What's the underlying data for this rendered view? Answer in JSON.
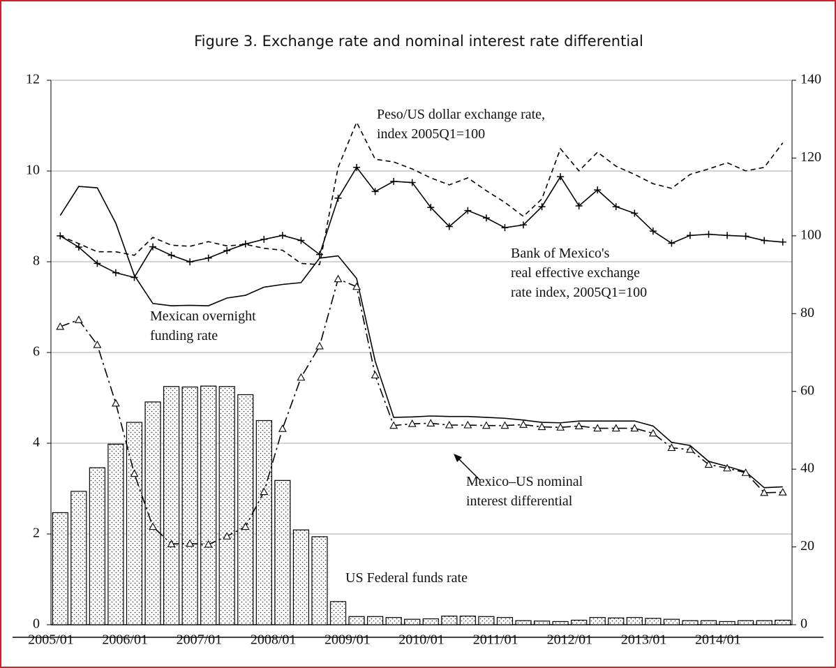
{
  "chart_data": {
    "type": "combo",
    "title": "Figure 3. Exchange rate and nominal interest rate differential",
    "categories": [
      "2005/01",
      null,
      null,
      null,
      "2006/01",
      null,
      null,
      null,
      "2007/01",
      null,
      null,
      null,
      "2008/01",
      null,
      null,
      null,
      "2009/01",
      null,
      null,
      null,
      "2010/01",
      null,
      null,
      null,
      "2011/01",
      null,
      null,
      null,
      "2012/01",
      null,
      null,
      null,
      "2013/01",
      null,
      null,
      null,
      "2014/01",
      null,
      null,
      null
    ],
    "ylim": [
      0,
      12
    ],
    "yticks": [
      0,
      2,
      4,
      6,
      8,
      10,
      12
    ],
    "y2lim": [
      0,
      140
    ],
    "y2ticks": [
      0,
      20,
      40,
      60,
      80,
      100,
      120,
      140
    ],
    "grid": true,
    "series": [
      {
        "name": "US Federal funds rate",
        "kind": "bar",
        "color": "#000000",
        "values": [
          2.47,
          2.94,
          3.46,
          3.98,
          4.46,
          4.91,
          5.25,
          5.24,
          5.26,
          5.25,
          5.07,
          4.5,
          3.18,
          2.09,
          1.94,
          0.51,
          0.18,
          0.18,
          0.16,
          0.12,
          0.13,
          0.19,
          0.19,
          0.18,
          0.16,
          0.09,
          0.08,
          0.07,
          0.1,
          0.16,
          0.15,
          0.16,
          0.14,
          0.12,
          0.09,
          0.09,
          0.07,
          0.09,
          0.09,
          0.1
        ]
      },
      {
        "name": "Mexican overnight\nfunding rate",
        "kind": "line",
        "dash": "solid",
        "color": "#000000",
        "values": [
          9.02,
          9.66,
          9.63,
          8.85,
          7.7,
          7.08,
          7.03,
          7.04,
          7.03,
          7.2,
          7.26,
          7.44,
          7.5,
          7.54,
          8.08,
          8.13,
          7.63,
          5.81,
          4.57,
          4.58,
          4.6,
          4.59,
          4.59,
          4.57,
          4.55,
          4.51,
          4.46,
          4.45,
          4.49,
          4.49,
          4.49,
          4.49,
          4.38,
          4.02,
          3.95,
          3.6,
          3.49,
          3.37,
          3.02,
          3.04
        ]
      },
      {
        "name": "Mexico–US nominal\ninterest differential",
        "kind": "line",
        "dash": "dashdot",
        "marker": "triangle",
        "color": "#000000",
        "values": [
          6.57,
          6.72,
          6.17,
          4.88,
          3.33,
          2.16,
          1.78,
          1.79,
          1.77,
          1.95,
          2.16,
          2.93,
          4.32,
          5.45,
          6.14,
          7.62,
          7.45,
          5.5,
          4.39,
          4.43,
          4.44,
          4.4,
          4.4,
          4.39,
          4.39,
          4.41,
          4.36,
          4.35,
          4.38,
          4.33,
          4.33,
          4.33,
          4.22,
          3.9,
          3.86,
          3.53,
          3.45,
          3.35,
          2.91,
          2.92
        ]
      },
      {
        "name": "Peso/US dollar exchange rate,\nindex 2005Q1=100",
        "kind": "line",
        "dash": "dashed",
        "axis": "y2",
        "color": "#000000",
        "values": [
          100,
          98.0,
          95.9,
          95.9,
          95.0,
          99.6,
          97.6,
          97.3,
          98.5,
          97.4,
          97.8,
          96.8,
          96.3,
          92.9,
          92.6,
          117.6,
          129.2,
          119.7,
          119.0,
          117.2,
          114.9,
          113.1,
          114.9,
          111.6,
          108.6,
          105.0,
          109.5,
          122.4,
          116.7,
          121.5,
          117.9,
          115.8,
          113.4,
          112.2,
          115.8,
          117.2,
          118.8,
          116.7,
          117.6,
          123.9
        ]
      },
      {
        "name": "Bank of Mexico's\nreal effective exchange\nrate index, 2005Q1=100",
        "kind": "line",
        "dash": "solid",
        "marker": "plus",
        "axis": "y2",
        "color": "#000000",
        "values": [
          100,
          97.1,
          92.9,
          90.5,
          89.3,
          97.2,
          95.0,
          93.3,
          94.3,
          96.2,
          97.9,
          99.1,
          100.1,
          98.8,
          95.2,
          109.7,
          117.6,
          111.4,
          114.0,
          113.7,
          107.3,
          102.4,
          106.5,
          104.6,
          102.1,
          102.8,
          107.5,
          115.2,
          107.7,
          111.8,
          107.5,
          105.8,
          101.2,
          98.1,
          100.1,
          100.4,
          100.1,
          99.9,
          98.8,
          98.4
        ]
      }
    ]
  }
}
